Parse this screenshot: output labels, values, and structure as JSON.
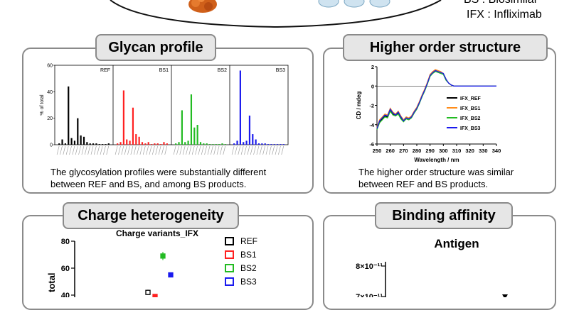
{
  "header_legend": {
    "bs_line": "BS : Biosimilar",
    "ifx_line": "IFX : Infliximab"
  },
  "colors": {
    "REF": "#000000",
    "BS1": "#ff2020",
    "BS2": "#22bb22",
    "BS3": "#1a1aee",
    "panel_border": "#8a8a8a",
    "title_bg": "#e6e6e6"
  },
  "panels": {
    "glycan": {
      "title": "Glycan profile",
      "caption_line1": "The glycosylation profiles were substantially different",
      "caption_line2": "between REF and BS, and among BS products."
    },
    "hos": {
      "title": "Higher order structure",
      "caption_line1": "The higher order structure was similar",
      "caption_line2": "between REF and BS products."
    },
    "charge": {
      "title": "Charge heterogeneity"
    },
    "binding": {
      "title": "Binding affinity"
    }
  },
  "chart_data": [
    {
      "type": "bar",
      "ylabel": "% of total",
      "ylim": [
        0,
        60
      ],
      "yticks": [
        "0",
        "20",
        "40",
        "60"
      ],
      "panels": [
        {
          "name": "REF",
          "values": [
            1,
            4,
            1,
            44,
            5,
            3,
            20,
            7,
            6,
            2,
            1,
            1,
            1,
            0.5,
            0.5,
            0.5,
            1
          ]
        },
        {
          "name": "BS1",
          "values": [
            1,
            2,
            41,
            4,
            3,
            28,
            8,
            6,
            2,
            1,
            2,
            0.5,
            1,
            1,
            0.5,
            2,
            1
          ]
        },
        {
          "name": "BS2",
          "values": [
            1,
            2,
            26,
            2,
            3,
            38,
            13,
            15,
            2,
            1,
            1,
            0.5,
            0.5,
            0.5,
            0.5,
            1,
            0.5
          ]
        },
        {
          "name": "BS3",
          "values": [
            1,
            3,
            56,
            2,
            3,
            22,
            8,
            4,
            1,
            1,
            1,
            0.5,
            0.5,
            0.5,
            0.5,
            0.5,
            0.5
          ]
        }
      ]
    },
    {
      "type": "line",
      "xlabel": "Wavelength / nm",
      "ylabel": "CD / mdeg",
      "xlim": [
        250,
        340
      ],
      "ylim": [
        -6,
        2
      ],
      "xticks": [
        "250",
        "260",
        "270",
        "280",
        "290",
        "300",
        "310",
        "320",
        "330",
        "340"
      ],
      "yticks": [
        "2",
        "0",
        "-2",
        "-4",
        "-6"
      ],
      "x": [
        250,
        252,
        254,
        256,
        258,
        260,
        262,
        264,
        266,
        268,
        270,
        272,
        274,
        276,
        278,
        280,
        282,
        284,
        286,
        288,
        290,
        292,
        294,
        296,
        298,
        300,
        302,
        304,
        306,
        308,
        310,
        315,
        320,
        325,
        330,
        335,
        340
      ],
      "series": [
        {
          "name": "IFX_REF",
          "values": [
            -4.4,
            -3.7,
            -3.4,
            -3.1,
            -3.2,
            -2.5,
            -2.9,
            -3.0,
            -2.8,
            -3.3,
            -3.6,
            -3.3,
            -3.4,
            -3.2,
            -2.7,
            -2.3,
            -1.7,
            -1.0,
            -0.4,
            0.3,
            1.1,
            1.4,
            1.6,
            1.5,
            1.4,
            1.3,
            0.7,
            0.3,
            0.1,
            0.0,
            0.0,
            0.0,
            0.0,
            0.0,
            0.0,
            0.0,
            0.0
          ]
        },
        {
          "name": "IFX_BS1",
          "values": [
            -4.3,
            -3.5,
            -3.2,
            -2.9,
            -3.0,
            -2.3,
            -2.7,
            -2.9,
            -2.6,
            -3.1,
            -3.5,
            -3.2,
            -3.3,
            -3.1,
            -2.6,
            -2.2,
            -1.6,
            -0.9,
            -0.3,
            0.4,
            1.2,
            1.5,
            1.7,
            1.6,
            1.5,
            1.3,
            0.7,
            0.3,
            0.1,
            0.0,
            0.0,
            0.0,
            0.0,
            0.0,
            0.0,
            0.0,
            0.0
          ]
        },
        {
          "name": "IFX_BS2",
          "values": [
            -4.5,
            -3.8,
            -3.5,
            -3.2,
            -3.3,
            -2.6,
            -3.0,
            -3.1,
            -2.9,
            -3.4,
            -3.7,
            -3.4,
            -3.5,
            -3.3,
            -2.8,
            -2.4,
            -1.8,
            -1.1,
            -0.5,
            0.2,
            1.0,
            1.3,
            1.5,
            1.4,
            1.3,
            1.2,
            0.6,
            0.3,
            0.1,
            0.0,
            0.0,
            0.0,
            0.0,
            0.0,
            0.0,
            0.0,
            0.0
          ]
        },
        {
          "name": "IFX_BS3",
          "values": [
            -4.4,
            -3.6,
            -3.3,
            -3.0,
            -3.1,
            -2.4,
            -2.8,
            -3.0,
            -2.7,
            -3.2,
            -3.6,
            -3.3,
            -3.4,
            -3.2,
            -2.7,
            -2.3,
            -1.7,
            -1.0,
            -0.4,
            0.3,
            1.1,
            1.4,
            1.6,
            1.5,
            1.4,
            1.3,
            0.7,
            0.3,
            0.1,
            0.0,
            0.0,
            0.0,
            0.0,
            0.0,
            0.0,
            0.0,
            0.0
          ]
        }
      ]
    },
    {
      "type": "scatter",
      "title": "Charge variants_IFX",
      "ylabel": "total",
      "ylim": [
        40,
        80
      ],
      "yticks": [
        "80",
        "60",
        "40"
      ],
      "legend": [
        "REF",
        "BS1",
        "BS2",
        "BS3"
      ],
      "points": [
        {
          "series": "REF",
          "category": 1,
          "value": 42,
          "err": 2
        },
        {
          "series": "BS1",
          "category": 2,
          "value": 39,
          "err": 1
        },
        {
          "series": "BS2",
          "category": 3,
          "value": 69,
          "err": 3
        },
        {
          "series": "BS3",
          "category": 4,
          "value": 55,
          "err": 1
        }
      ]
    },
    {
      "type": "scatter",
      "title": "Antigen",
      "yticks": [
        "8×10⁻¹¹",
        "7×10⁻¹¹"
      ]
    }
  ]
}
